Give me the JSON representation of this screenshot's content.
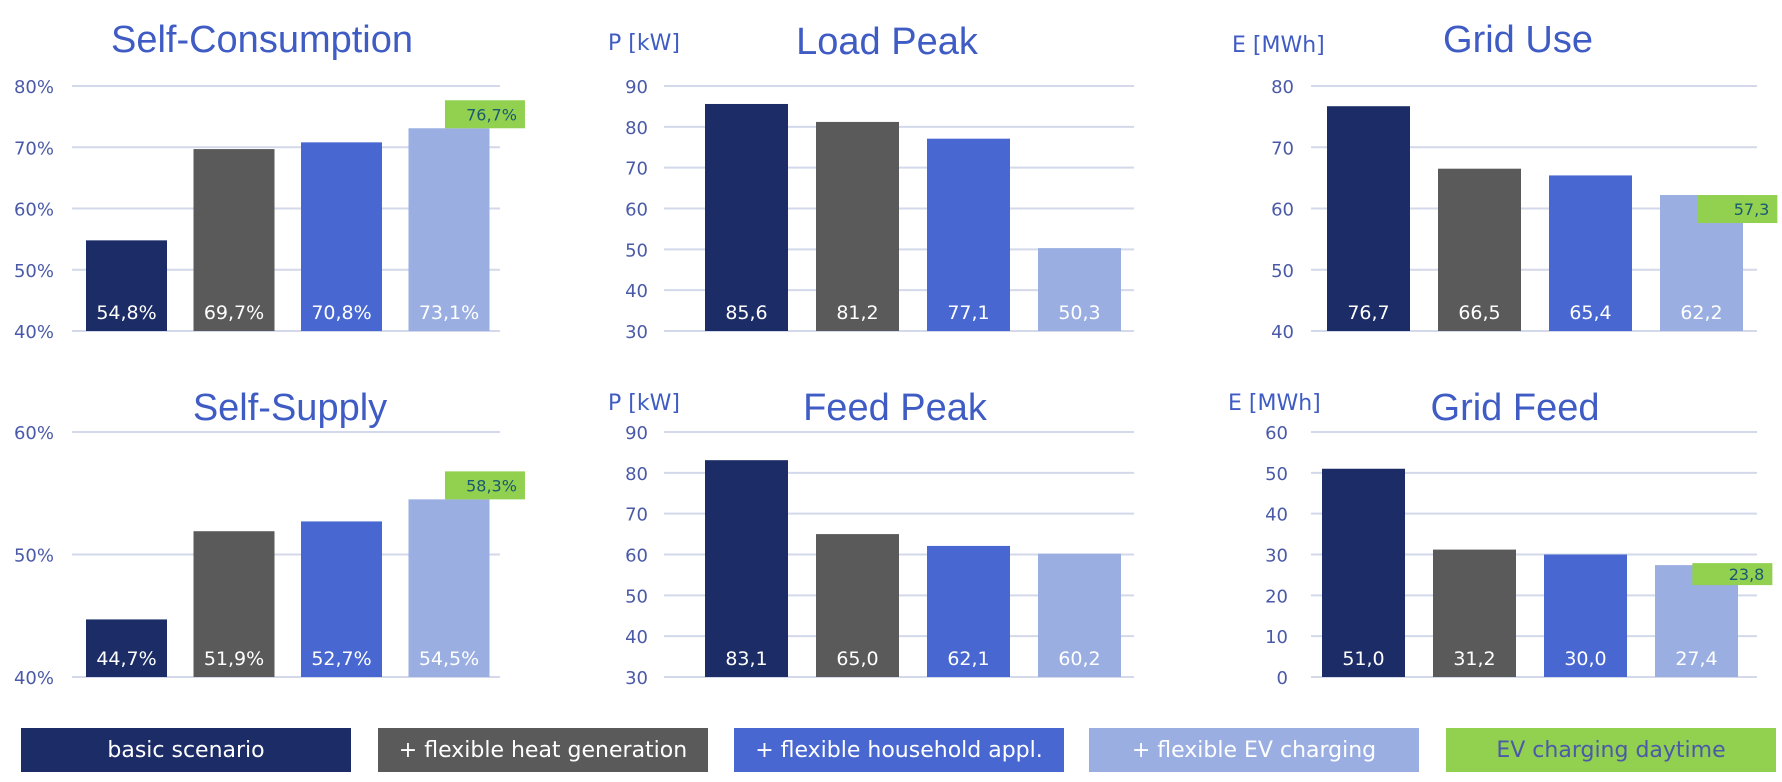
{
  "colors": {
    "series": [
      "#1c2c66",
      "#5a5a5a",
      "#4867d0",
      "#9aaee2"
    ],
    "annotation": "#92d050",
    "annotation_text": "#1a5a70",
    "title": "#3f5bc4",
    "tick": "#4a5aa8",
    "grid": "#d3d9ea"
  },
  "legend": [
    {
      "label": "basic scenario",
      "color": "#1c2c66",
      "text_color": "#ffffff"
    },
    {
      "label": "+ flexible heat generation",
      "color": "#5a5a5a",
      "text_color": "#ffffff"
    },
    {
      "label": "+ flexible household appl.",
      "color": "#4867d0",
      "text_color": "#ffffff"
    },
    {
      "label": "+ flexible EV charging",
      "color": "#9aaee2",
      "text_color": "#ffffff"
    },
    {
      "label": "EV charging daytime",
      "color": "#92d050",
      "text_color": "#4a5aa8"
    }
  ],
  "chart_data": [
    {
      "type": "bar",
      "title": "Self-Consumption",
      "ylabel": "",
      "categories": [
        "basic scenario",
        "+ flexible heat generation",
        "+ flexible household appl.",
        "+ flexible EV charging"
      ],
      "values": [
        54.8,
        69.7,
        70.8,
        73.1
      ],
      "value_labels": [
        "54,8%",
        "69,7%",
        "70,8%",
        "73,1%"
      ],
      "ylim": [
        40,
        80
      ],
      "yticks": [
        40,
        50,
        60,
        70,
        80
      ],
      "ytick_labels": [
        "40%",
        "50%",
        "60%",
        "70%",
        "80%"
      ],
      "annotation": {
        "series": "EV charging daytime",
        "value": 76.7,
        "label": "76,7%",
        "position": "above-last-bar"
      },
      "grid": true
    },
    {
      "type": "bar",
      "title": "Load Peak",
      "ylabel": "P [kW]",
      "categories": [
        "basic scenario",
        "+ flexible heat generation",
        "+ flexible household appl.",
        "+ flexible EV charging"
      ],
      "values": [
        85.6,
        81.2,
        77.1,
        50.3
      ],
      "value_labels": [
        "85,6",
        "81,2",
        "77,1",
        "50,3"
      ],
      "ylim": [
        30,
        90
      ],
      "yticks": [
        30,
        40,
        50,
        60,
        70,
        80,
        90
      ],
      "ytick_labels": [
        "30",
        "40",
        "50",
        "60",
        "70",
        "80",
        "90"
      ],
      "annotation": null,
      "grid": true
    },
    {
      "type": "bar",
      "title": "Grid Use",
      "ylabel": "E [MWh]",
      "categories": [
        "basic scenario",
        "+ flexible heat generation",
        "+ flexible household appl.",
        "+ flexible EV charging"
      ],
      "values": [
        76.7,
        66.5,
        65.4,
        62.2
      ],
      "value_labels": [
        "76,7",
        "66,5",
        "65,4",
        "62,2"
      ],
      "ylim": [
        40,
        80
      ],
      "yticks": [
        40,
        50,
        60,
        70,
        80
      ],
      "ytick_labels": [
        "40",
        "50",
        "60",
        "70",
        "80"
      ],
      "annotation": {
        "series": "EV charging daytime",
        "value": 57.3,
        "label": "57,3",
        "position": "overlapping-last-bar"
      },
      "grid": true
    },
    {
      "type": "bar",
      "title": "Self-Supply",
      "ylabel": "",
      "categories": [
        "basic scenario",
        "+ flexible heat generation",
        "+ flexible household appl.",
        "+ flexible EV charging"
      ],
      "values": [
        44.7,
        51.9,
        52.7,
        54.5
      ],
      "value_labels": [
        "44,7%",
        "51,9%",
        "52,7%",
        "54,5%"
      ],
      "ylim": [
        40,
        60
      ],
      "yticks": [
        40,
        50,
        60
      ],
      "ytick_labels": [
        "40%",
        "50%",
        "60%"
      ],
      "annotation": {
        "series": "EV charging daytime",
        "value": 58.3,
        "label": "58,3%",
        "position": "above-last-bar"
      },
      "grid": true
    },
    {
      "type": "bar",
      "title": "Feed Peak",
      "ylabel": "P [kW]",
      "categories": [
        "basic scenario",
        "+ flexible heat generation",
        "+ flexible household appl.",
        "+ flexible EV charging"
      ],
      "values": [
        83.1,
        65.0,
        62.1,
        60.2
      ],
      "value_labels": [
        "83,1",
        "65,0",
        "62,1",
        "60,2"
      ],
      "ylim": [
        30,
        90
      ],
      "yticks": [
        30,
        40,
        50,
        60,
        70,
        80,
        90
      ],
      "ytick_labels": [
        "30",
        "40",
        "50",
        "60",
        "70",
        "80",
        "90"
      ],
      "annotation": null,
      "grid": true
    },
    {
      "type": "bar",
      "title": "Grid Feed",
      "ylabel": "E [MWh]",
      "categories": [
        "basic scenario",
        "+ flexible heat generation",
        "+ flexible household appl.",
        "+ flexible EV charging"
      ],
      "values": [
        51.0,
        31.2,
        30.0,
        27.4
      ],
      "value_labels": [
        "51,0",
        "31,2",
        "30,0",
        "27,4"
      ],
      "ylim": [
        0,
        60
      ],
      "yticks": [
        0,
        10,
        20,
        30,
        40,
        50,
        60
      ],
      "ytick_labels": [
        "0",
        "10",
        "20",
        "30",
        "40",
        "50",
        "60"
      ],
      "annotation": {
        "series": "EV charging daytime",
        "value": 23.8,
        "label": "23,8",
        "position": "overlapping-last-bar"
      },
      "grid": true
    }
  ]
}
